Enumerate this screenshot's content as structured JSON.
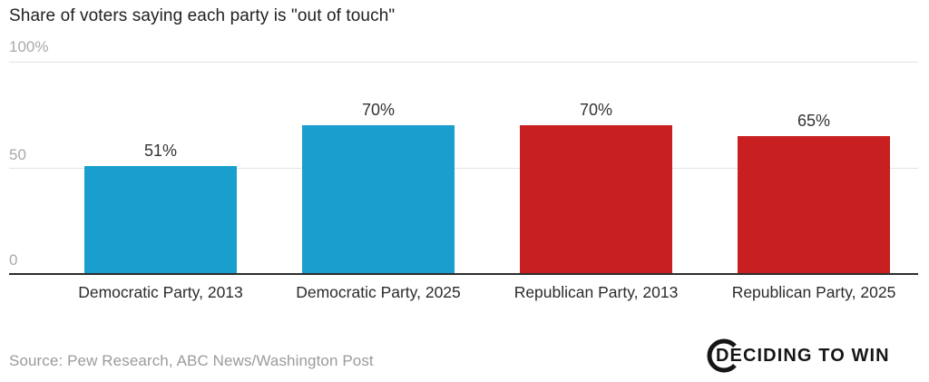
{
  "chart": {
    "title": "Share of voters saying each party is \"out of touch\""
  },
  "chart_data": {
    "type": "bar",
    "title": "Share of voters saying each party is \"out of touch\"",
    "categories": [
      "Democratic Party, 2013",
      "Democratic Party, 2025",
      "Republican Party, 2013",
      "Republican Party, 2025"
    ],
    "values": [
      51,
      70,
      70,
      65
    ],
    "value_labels": [
      "51%",
      "70%",
      "70%",
      "65%"
    ],
    "series_colors": [
      "#1a9ece",
      "#1a9ece",
      "#c82020",
      "#c82020"
    ],
    "democrat_color": "#1a9ece",
    "republican_color": "#c82020",
    "xlabel": "",
    "ylabel": "",
    "ylim": [
      0,
      100
    ],
    "yticks": [
      {
        "value": 100,
        "label": "100%"
      },
      {
        "value": 50,
        "label": "50"
      },
      {
        "value": 0,
        "label": "0"
      }
    ],
    "grid": "horizontal",
    "legend": "none"
  },
  "footer": {
    "source": "Source: Pew Research, ABC News/Washington Post",
    "logo_text": "DECIDING TO WIN"
  }
}
